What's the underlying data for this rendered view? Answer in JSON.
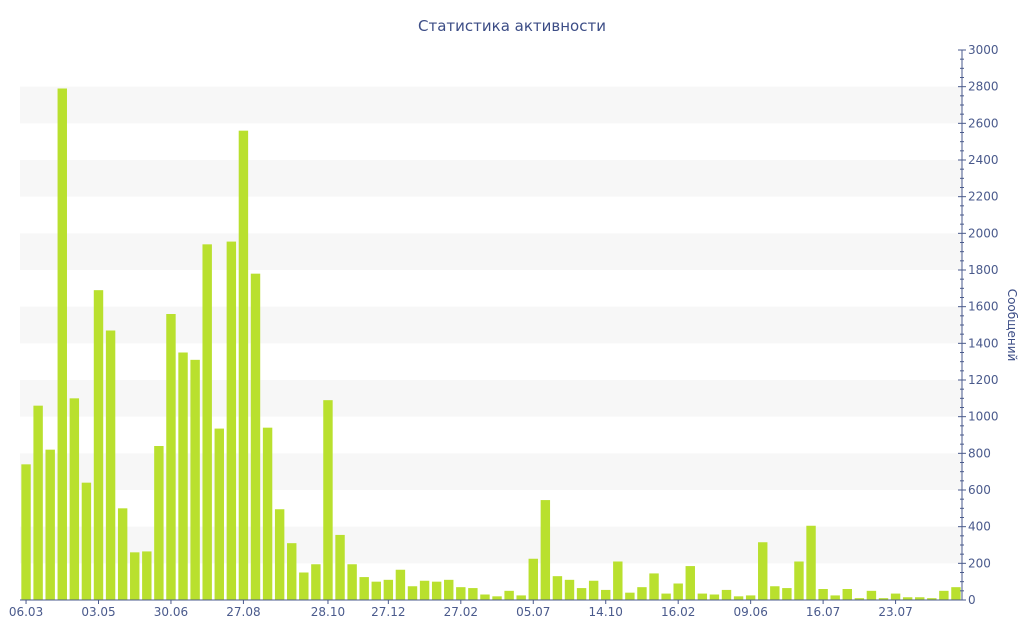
{
  "chart_data": {
    "type": "bar",
    "title": "Статистика активности",
    "xlabel": "",
    "ylabel": "Сообщений",
    "x_tick_labels": [
      "06.03",
      "03.05",
      "30.06",
      "27.08",
      "28.10",
      "27.12",
      "27.02",
      "05.07",
      "14.10",
      "16.02",
      "09.06",
      "16.07",
      "23.07"
    ],
    "x_tick_bar_index": [
      0,
      6,
      12,
      18,
      25,
      30,
      36,
      42,
      48,
      54,
      60,
      66,
      72
    ],
    "y_ticks": [
      0,
      200,
      400,
      600,
      800,
      1000,
      1200,
      1400,
      1600,
      1800,
      2000,
      2200,
      2400,
      2600,
      2800,
      3000
    ],
    "ylim": [
      0,
      3000
    ],
    "y_axis_position": "right",
    "grid": "horizontal bands",
    "values": [
      740,
      1060,
      820,
      2790,
      1100,
      640,
      1690,
      1470,
      500,
      260,
      265,
      840,
      1560,
      1350,
      1310,
      1940,
      935,
      1955,
      2560,
      1780,
      940,
      495,
      310,
      150,
      195,
      1090,
      355,
      195,
      125,
      100,
      110,
      165,
      75,
      105,
      100,
      110,
      70,
      65,
      30,
      20,
      50,
      25,
      225,
      545,
      130,
      110,
      65,
      105,
      55,
      210,
      40,
      70,
      145,
      35,
      90,
      185,
      35,
      30,
      55,
      20,
      25,
      315,
      75,
      65,
      210,
      405,
      60,
      25,
      60,
      10,
      50,
      10,
      35,
      15,
      15,
      10,
      50,
      70
    ]
  },
  "colors": {
    "bar": "#b9e02e",
    "axis": "#4a5a8c",
    "title": "#3c4d86",
    "band": "#f7f7f7"
  }
}
